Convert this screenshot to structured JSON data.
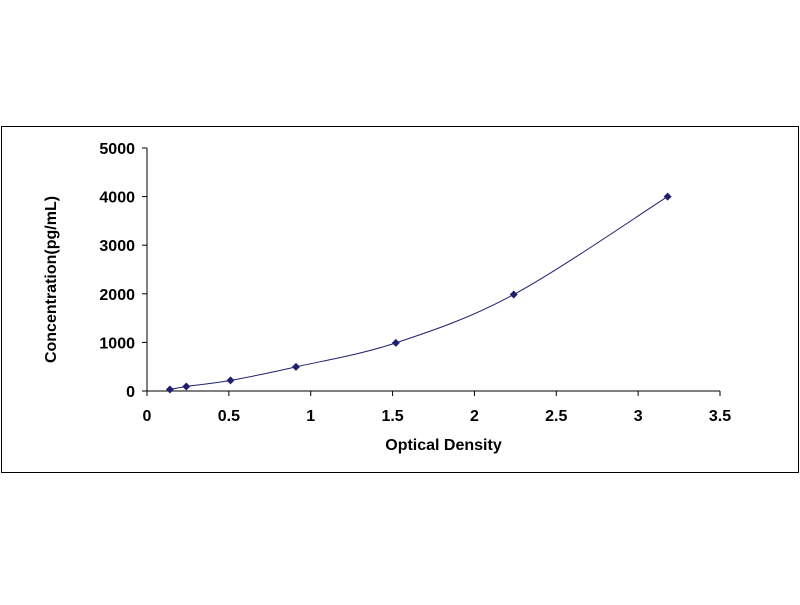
{
  "chart_data": {
    "type": "scatter",
    "title": "",
    "xlabel": "Optical Density",
    "ylabel": "Concentration(pg/mL)",
    "xlim": [
      0,
      3.5
    ],
    "ylim": [
      0,
      5000
    ],
    "x_ticks": [
      "0",
      "0.5",
      "1",
      "1.5",
      "2",
      "2.5",
      "3",
      "3.5"
    ],
    "y_ticks": [
      "0",
      "1000",
      "2000",
      "3000",
      "4000",
      "5000"
    ],
    "grid": false,
    "legend": "none",
    "trendline": "smooth curve through points",
    "series": [
      {
        "x": [
          0.14,
          0.24,
          0.51,
          0.91,
          1.52,
          2.24,
          3.18
        ],
        "y": [
          31,
          93,
          218,
          497,
          990,
          1985,
          4000
        ]
      }
    ],
    "colors": {
      "marker": "#1f1f6e",
      "line": "#1f1f6e",
      "axis": "#000000",
      "frame": "#000000"
    }
  }
}
